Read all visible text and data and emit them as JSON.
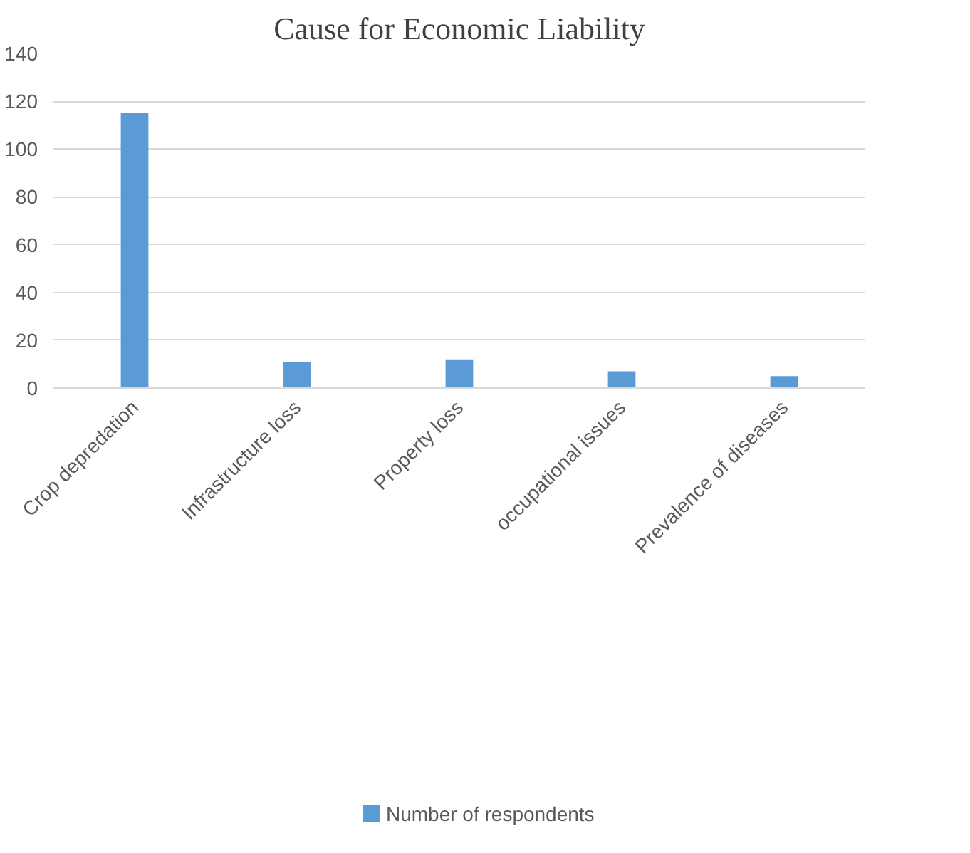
{
  "chart_data": {
    "type": "bar",
    "title": "Cause for Economic Liability",
    "categories": [
      "Crop depredation",
      "Infrastructure loss",
      "Property loss",
      "occupational issues",
      "Prevalence of diseases"
    ],
    "series": [
      {
        "name": "Number of respondents",
        "color": "#5b9bd5",
        "values": [
          115,
          11,
          12,
          7,
          5
        ]
      }
    ],
    "ylim": [
      0,
      140
    ],
    "yticks": [
      0,
      20,
      40,
      60,
      80,
      100,
      120,
      140
    ],
    "grid": "y",
    "legend": "bottom"
  }
}
